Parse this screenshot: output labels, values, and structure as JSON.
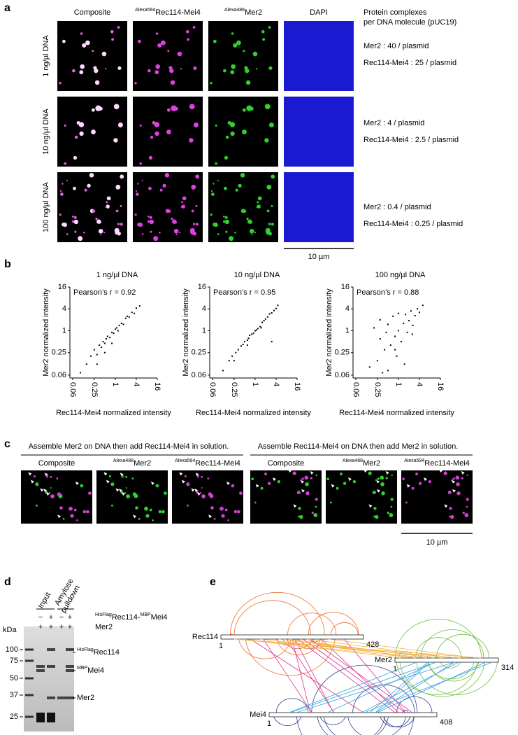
{
  "panel_a": {
    "letter": "a",
    "columns": [
      [
        {
          "text": "Composite"
        }
      ],
      [
        {
          "sup": "Alexa594"
        },
        {
          "text": "Rec114-Mei4"
        }
      ],
      [
        {
          "sup": "Alexa488"
        },
        {
          "text": "Mer2"
        }
      ],
      [
        {
          "text": "DAPI"
        }
      ]
    ],
    "rows": [
      "1 ng/µl DNA",
      "10 ng/µl DNA",
      "100 ng/µl DNA"
    ],
    "info_header": [
      "Protein complexes",
      "per DNA molecule (pUC19)"
    ],
    "info": [
      [
        "Mer2 : 40 / plasmid",
        "Rec114-Mei4 : 25 / plasmid"
      ],
      [
        "Mer2 : 4 / plasmid",
        "Rec114-Mei4 : 2.5 / plasmid"
      ],
      [
        "Mer2 : 0.4 / plasmid",
        "Rec114-Mei4 : 0.25 / plasmid"
      ]
    ],
    "scale_bar": "10 µm"
  },
  "panel_b": {
    "letter": "b",
    "chart_data": [
      {
        "type": "scatter",
        "title": "1 ng/µl DNA",
        "annotation": "Pearson’s r = 0.92",
        "x_label": "Rec114-Mei4 normalized intensity",
        "y_label": "Mer2 normalized intensity",
        "log_scale": true,
        "color": "#000000",
        "xlim": [
          0.05,
          16
        ],
        "ylim": [
          0.05,
          16
        ],
        "xticks": [
          0.06,
          0.25,
          1,
          4,
          16
        ],
        "yticks": [
          0.06,
          0.25,
          1,
          4,
          16
        ],
        "x": [
          0.1,
          0.15,
          0.2,
          0.25,
          0.3,
          0.35,
          0.4,
          0.45,
          0.5,
          0.55,
          0.6,
          0.7,
          0.8,
          0.9,
          1,
          1.1,
          1.2,
          1.3,
          1.5,
          1.7,
          2,
          2.2,
          2.5,
          3,
          3.5,
          4,
          5,
          0.3,
          0.5,
          0.8
        ],
        "y": [
          0.07,
          0.12,
          0.2,
          0.3,
          0.22,
          0.4,
          0.35,
          0.5,
          0.45,
          0.6,
          0.7,
          0.65,
          0.9,
          0.85,
          1.1,
          1.2,
          1,
          1.4,
          1.6,
          1.5,
          2.2,
          2.5,
          2.4,
          3.2,
          3,
          4.2,
          4.8,
          0.12,
          0.25,
          0.45
        ]
      },
      {
        "type": "scatter",
        "title": "10 ng/µl DNA",
        "annotation": "Pearson’s r = 0.95",
        "x_label": "Rec114-Mei4 normalized intensity",
        "y_label": "Mer2 normalized intensity",
        "log_scale": true,
        "color": "#000000",
        "xlim": [
          0.05,
          16
        ],
        "ylim": [
          0.05,
          16
        ],
        "xticks": [
          0.06,
          0.25,
          1,
          4,
          16
        ],
        "yticks": [
          0.06,
          0.25,
          1,
          4,
          16
        ],
        "x": [
          0.12,
          0.18,
          0.22,
          0.28,
          0.33,
          0.4,
          0.45,
          0.5,
          0.6,
          0.65,
          0.7,
          0.8,
          0.9,
          1,
          1.1,
          1.2,
          1.4,
          1.6,
          1.8,
          2,
          2.3,
          2.6,
          3,
          3.5,
          4,
          4.5,
          0.25,
          0.6,
          1.5,
          3
        ],
        "y": [
          0.08,
          0.15,
          0.2,
          0.25,
          0.3,
          0.38,
          0.42,
          0.5,
          0.55,
          0.62,
          0.75,
          0.8,
          0.85,
          1,
          1.05,
          1.15,
          1.3,
          1.7,
          1.9,
          2.1,
          2.4,
          2.9,
          3.1,
          3.6,
          4.1,
          5,
          0.15,
          0.4,
          1.2,
          0.5
        ]
      },
      {
        "type": "scatter",
        "title": "100 ng/µl DNA",
        "annotation": "Pearson’s r = 0.88",
        "x_label": "Rec114-Mei4 normalized intensity",
        "y_label": "Mer2 normalized intensity",
        "log_scale": true,
        "color": "#000000",
        "xlim": [
          0.05,
          16
        ],
        "ylim": [
          0.05,
          16
        ],
        "xticks": [
          0.06,
          0.25,
          1,
          4,
          16
        ],
        "yticks": [
          0.06,
          0.25,
          1,
          4,
          16
        ],
        "x": [
          0.15,
          0.2,
          0.25,
          0.3,
          0.3,
          0.4,
          0.45,
          0.5,
          0.5,
          0.6,
          0.7,
          0.8,
          0.9,
          1,
          1,
          1.2,
          1.4,
          1.6,
          1.8,
          2,
          2.3,
          2.6,
          3,
          3.5,
          4,
          5,
          0.35,
          0.8,
          1.5,
          2.5
        ],
        "y": [
          0.1,
          1.2,
          0.15,
          0.6,
          2,
          0.3,
          0.9,
          0.08,
          1.5,
          0.4,
          2.5,
          0.7,
          0.2,
          1,
          3,
          0.5,
          1.6,
          2.8,
          0.9,
          1.9,
          3.5,
          1.4,
          2.6,
          4,
          3.2,
          5,
          0.07,
          0.3,
          0.12,
          0.8
        ]
      }
    ]
  },
  "panel_c": {
    "letter": "c",
    "groups": [
      "Assemble Mer2 on DNA then add Rec114-Mei4 in solution.",
      "Assemble Rec114-Mei4 on DNA then add Mer2 in solution."
    ],
    "columns": [
      [
        {
          "text": "Composite"
        }
      ],
      [
        {
          "sup": "Alexa488"
        },
        {
          "text": "Mer2"
        }
      ],
      [
        {
          "sup": "Alexa594"
        },
        {
          "text": "Rec114-Mei4"
        }
      ],
      [
        {
          "text": "Composite"
        }
      ],
      [
        {
          "sup": "Alexa488"
        },
        {
          "text": "Mer2"
        }
      ],
      [
        {
          "sup": "Alexa594"
        },
        {
          "text": "Rec114-Mei4"
        }
      ]
    ],
    "scale_bar": "10 µm"
  },
  "panel_d": {
    "letter": "d",
    "lane_groups": [
      [
        "Input"
      ],
      [
        "Amylose",
        "pulldown"
      ]
    ],
    "conditions": [
      {
        "label": [
          {
            "sup": "HisFlag"
          },
          {
            "text": "Rec114-"
          },
          {
            "sup": "MBP"
          },
          {
            "text": "Mei4"
          }
        ],
        "signs": [
          "−",
          "+",
          "−",
          "+"
        ]
      },
      {
        "label": [
          {
            "text": "Mer2"
          }
        ],
        "signs": [
          "+",
          "+",
          "+",
          "+"
        ]
      }
    ],
    "unit": "kDa",
    "markers": [
      100,
      75,
      50,
      37,
      25
    ],
    "bands": [
      [
        {
          "sup": "HisFlag"
        },
        {
          "text": "Rec114"
        }
      ],
      [
        {
          "sup": "MBP"
        },
        {
          "text": "Mei4"
        }
      ],
      [
        {
          "text": "Mer2"
        }
      ]
    ]
  },
  "panel_e": {
    "letter": "e",
    "proteins": [
      {
        "name": "Rec114",
        "start": 1,
        "end": 428
      },
      {
        "name": "Mer2",
        "start": 1,
        "end": 314
      },
      {
        "name": "Mei4",
        "start": 1,
        "end": 408
      }
    ]
  }
}
